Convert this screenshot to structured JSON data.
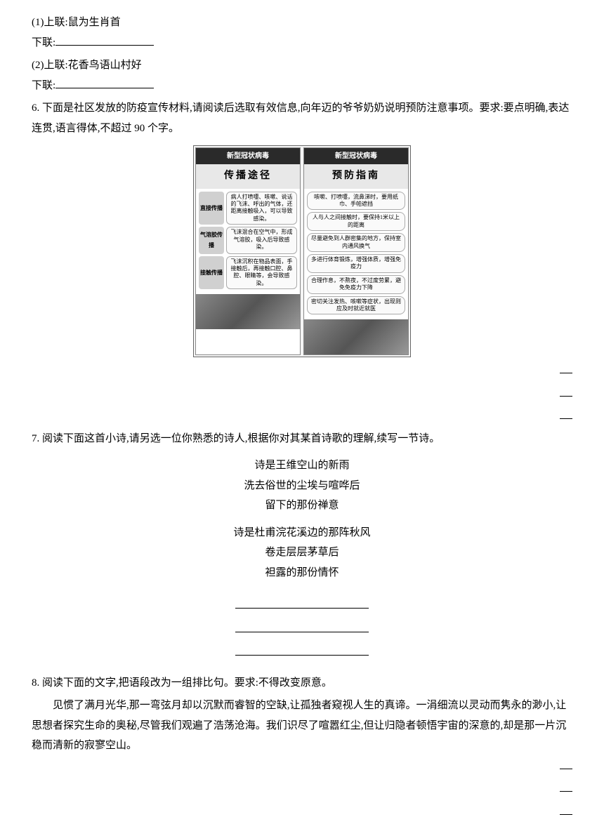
{
  "q5": {
    "item1": {
      "prefix": "(1)上联:",
      "upper": "鼠为生肖首",
      "lower_label": "下联:"
    },
    "item2": {
      "prefix": "(2)上联:",
      "upper": "花香鸟语山村好",
      "lower_label": "下联:"
    }
  },
  "q6": {
    "number": "6. ",
    "text": "下面是社区发放的防疫宣传材料,请阅读后选取有效信息,向年迈的爷爷奶奶说明预防注意事项。要求:要点明确,表达连贯,语言得体,不超过 90 个字。",
    "infographic": {
      "left": {
        "header": "新型冠状病毒",
        "title": "传播途径",
        "rows": [
          {
            "label": "直接传播",
            "desc": "病人打喷嚏、咳嗽、说话的飞沫、呼出的气体，还距离接触吸入，可以导致感染。"
          },
          {
            "label": "气溶胶传播",
            "desc": "飞沫混合在空气中，形成气溶胶，吸入后导致感染。"
          },
          {
            "label": "接触传播",
            "desc": "飞沫沉积在物品表面，手接触后，再接触口腔、鼻腔、眼睛等，会导致感染。"
          }
        ]
      },
      "right": {
        "header": "新型冠状病毒",
        "title": "预防指南",
        "items": [
          "咳嗽、打喷嚏，流鼻涕时，要用纸巾、手帕遮挡",
          "人与人之间接触时，要保持1米以上的距离",
          "尽量避免到人群密集的地方，保持室内通风换气",
          "多进行体育锻炼，增强体质，增强免疫力",
          "合理作息，不熬夜，不过度劳累，避免免疫力下降",
          "密切关注发热、咳嗽等症状，出现则应及时就近就医"
        ]
      }
    }
  },
  "q7": {
    "number": "7. ",
    "text": "阅读下面这首小诗,请另选一位你熟悉的诗人,根据你对其某首诗歌的理解,续写一节诗。",
    "stanza1": {
      "l1": "诗是王维空山的新雨",
      "l2": "洗去俗世的尘埃与喧哗后",
      "l3": "留下的那份禅意"
    },
    "stanza2": {
      "l1": "诗是杜甫浣花溪边的那阵秋风",
      "l2": "卷走层层茅草后",
      "l3": "袒露的那份情怀"
    }
  },
  "q8": {
    "number": "8. ",
    "text": "阅读下面的文字,把语段改为一组排比句。要求:不得改变原意。",
    "passage": "见惯了满月光华,那一弯弦月却以沉默而睿智的空缺,让孤独者窥视人生的真谛。一涓细流以灵动而隽永的渺小,让思想者探究生命的奥秘,尽管我们观遍了浩荡沧海。我们识尽了喧嚣红尘,但让归隐者顿悟宇宙的深意的,却是那一片沉稳而清新的寂寥空山。"
  }
}
